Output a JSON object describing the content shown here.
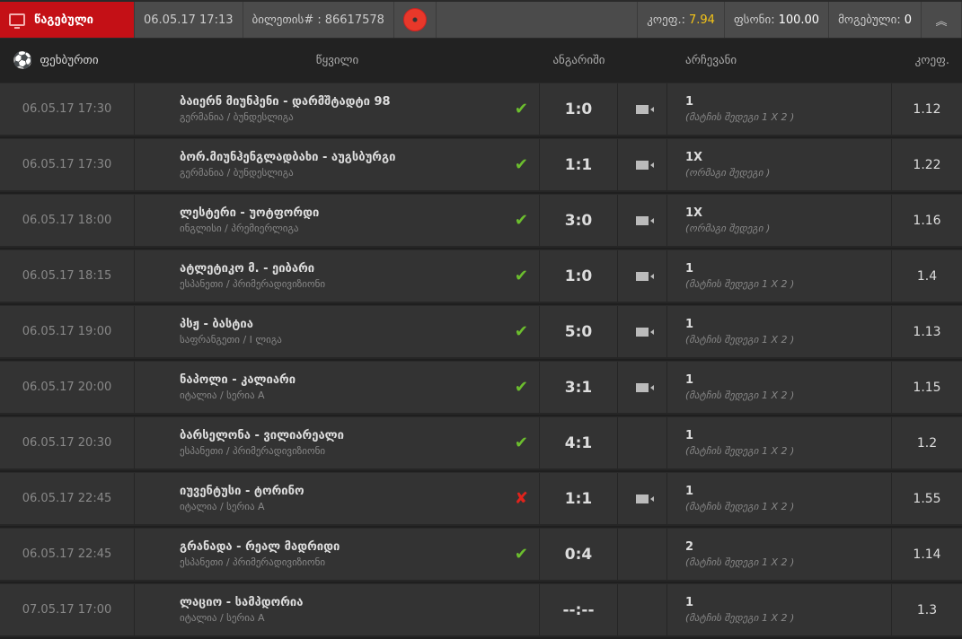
{
  "topbar": {
    "status": "წაგებული",
    "datetime": "06.05.17 17:13",
    "ticket_label": "ბილეთის# :",
    "ticket_no": "86617578",
    "odds_label": "კოეფ.:",
    "odds": "7.94",
    "stake_label": "ფსონი:",
    "stake": "100.00",
    "won_label": "მოგებული:",
    "won": "0"
  },
  "colors": {
    "lost": "#c41016",
    "accent": "#f5c518",
    "win": "#6cbe2e",
    "loss": "#e0231c"
  },
  "header": {
    "sport": "ფეხბურთი",
    "pair": "წყვილი",
    "score": "ანგარიში",
    "choice": "არჩევანი",
    "odds": "კოეფ."
  },
  "rows": [
    {
      "date": "06.05.17 17:30",
      "match": "ბაიერნ მიუნჰენი - დარმშტადტი 98",
      "league": "გერმანია / ბუნდესლიგა",
      "status": "won",
      "score": "1:0",
      "video": true,
      "choice": "1",
      "market": "(მატჩის შედეგი 1 X 2 )",
      "odds": "1.12"
    },
    {
      "date": "06.05.17 17:30",
      "match": "ბორ.მიუნჰენგლადბახი - აუგსბურგი",
      "league": "გერმანია / ბუნდესლიგა",
      "status": "won",
      "score": "1:1",
      "video": true,
      "choice": "1X",
      "market": "(ორმაგი შედეგი )",
      "odds": "1.22"
    },
    {
      "date": "06.05.17 18:00",
      "match": "ლესტერი - უოტფორდი",
      "league": "ინგლისი / პრემიერლიგა",
      "status": "won",
      "score": "3:0",
      "video": true,
      "choice": "1X",
      "market": "(ორმაგი შედეგი )",
      "odds": "1.16"
    },
    {
      "date": "06.05.17 18:15",
      "match": "ატლეტიკო მ. - ეიბარი",
      "league": "ესპანეთი / პრიმერადივიზიონი",
      "status": "won",
      "score": "1:0",
      "video": true,
      "choice": "1",
      "market": "(მატჩის შედეგი 1 X 2 )",
      "odds": "1.4"
    },
    {
      "date": "06.05.17 19:00",
      "match": "პსჟ - ბასტია",
      "league": "საფრანგეთი / I ლიგა",
      "status": "won",
      "score": "5:0",
      "video": true,
      "choice": "1",
      "market": "(მატჩის შედეგი 1 X 2 )",
      "odds": "1.13"
    },
    {
      "date": "06.05.17 20:00",
      "match": "ნაპოლი - კალიარი",
      "league": "იტალია / სერია A",
      "status": "won",
      "score": "3:1",
      "video": true,
      "choice": "1",
      "market": "(მატჩის შედეგი 1 X 2 )",
      "odds": "1.15"
    },
    {
      "date": "06.05.17 20:30",
      "match": "ბარსელონა - ვილიარეალი",
      "league": "ესპანეთი / პრიმერადივიზიონი",
      "status": "won",
      "score": "4:1",
      "video": false,
      "choice": "1",
      "market": "(მატჩის შედეგი 1 X 2 )",
      "odds": "1.2"
    },
    {
      "date": "06.05.17 22:45",
      "match": "იუვენტუსი - ტორინო",
      "league": "იტალია / სერია A",
      "status": "lost",
      "score": "1:1",
      "video": true,
      "choice": "1",
      "market": "(მატჩის შედეგი 1 X 2 )",
      "odds": "1.55"
    },
    {
      "date": "06.05.17 22:45",
      "match": "გრანადა - რეალ მადრიდი",
      "league": "ესპანეთი / პრიმერადივიზიონი",
      "status": "won",
      "score": "0:4",
      "video": false,
      "choice": "2",
      "market": "(მატჩის შედეგი 1 X 2 )",
      "odds": "1.14"
    },
    {
      "date": "07.05.17 17:00",
      "match": "ლაციო - სამპდორია",
      "league": "იტალია / სერია A",
      "status": "pending",
      "score": "--:--",
      "video": false,
      "choice": "1",
      "market": "(მატჩის შედეგი 1 X 2 )",
      "odds": "1.3"
    }
  ]
}
